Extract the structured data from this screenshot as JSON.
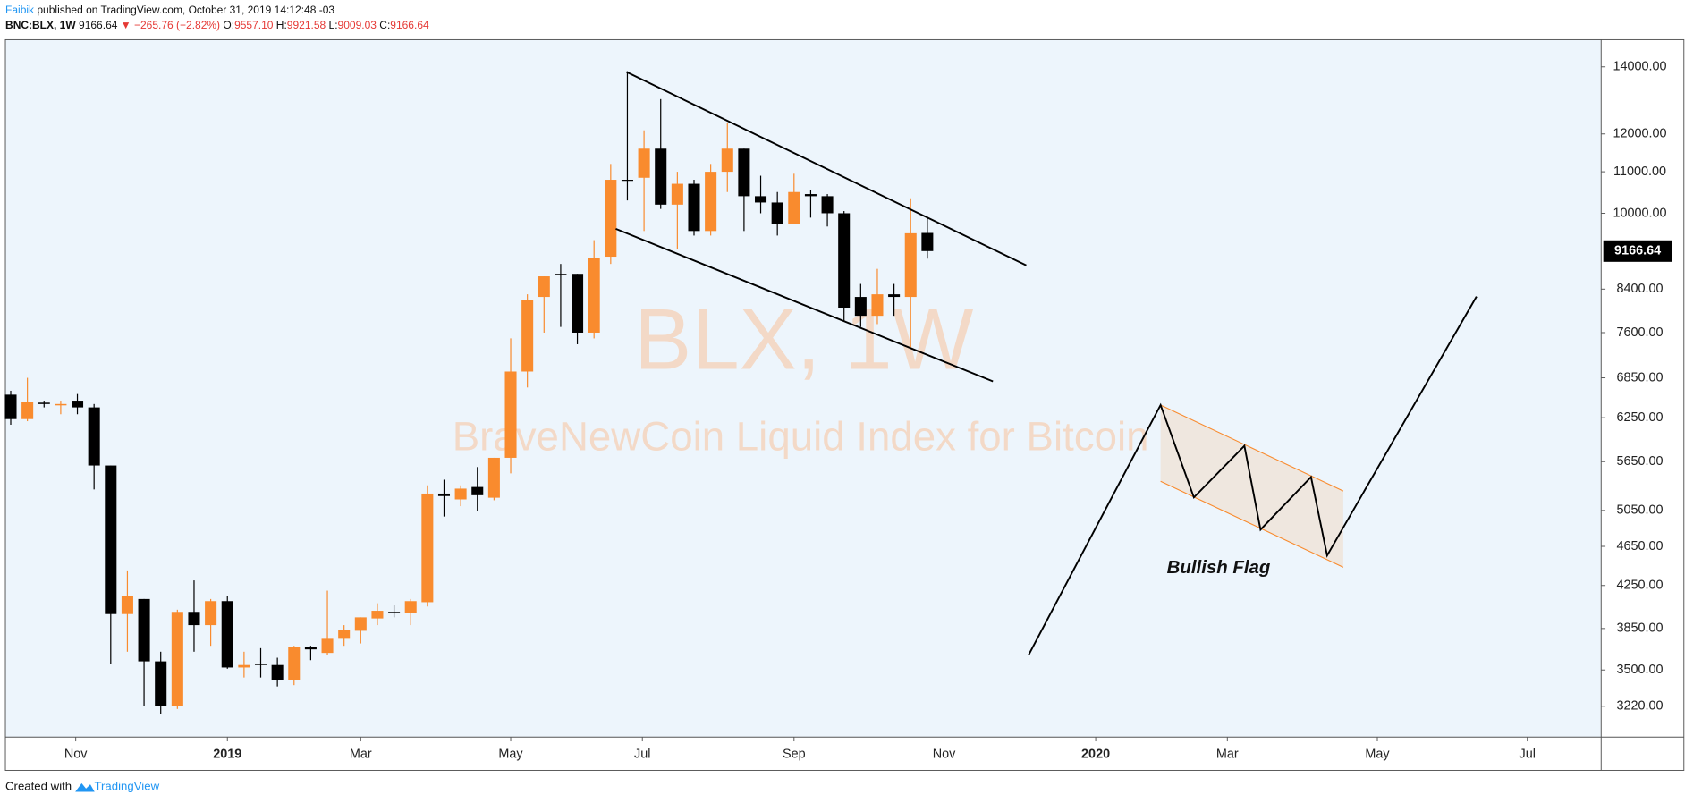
{
  "header": {
    "author": "Faibik",
    "published": "published on TradingView.com, October 31, 2019 14:12:48 -03",
    "symbol": "BNC:BLX, 1W",
    "last": "9166.64",
    "change": "▼ −265.76 (−2.82%)",
    "open_label": "O:",
    "open": "9557.10",
    "high_label": "H:",
    "high": "9921.58",
    "low_label": "L:",
    "low": "9009.03",
    "close_label": "C:",
    "close": "9166.64"
  },
  "footer": {
    "created": "Created with",
    "brand": "TradingView"
  },
  "chart_data": {
    "type": "candlestick",
    "watermark": "BLX, 1W",
    "watermark_subtitle": "BraveNewCoin Liquid Index for Bitcoin",
    "annotation": "Bullish Flag",
    "categories": [
      null,
      null,
      null,
      null,
      null,
      null,
      null,
      null,
      null,
      null,
      null,
      null,
      null,
      null,
      null,
      null,
      null,
      null,
      null,
      null,
      null,
      null,
      null,
      null,
      null,
      null,
      null,
      null,
      null,
      null,
      null,
      null,
      null,
      null,
      null,
      null,
      null,
      null,
      null,
      null,
      null,
      null,
      null,
      null,
      null,
      null,
      null,
      null,
      null,
      null,
      null,
      null,
      null,
      null,
      null,
      null
    ],
    "open": [
      6590,
      6230,
      6470,
      6430,
      6500,
      6400,
      5600,
      3980,
      4120,
      3570,
      3220,
      4000,
      3880,
      4100,
      3520,
      3550,
      3540,
      3420,
      3690,
      3640,
      3760,
      3830,
      3940,
      4000,
      3990,
      4090,
      5250,
      5180,
      5330,
      5200,
      5700,
      6950,
      8250,
      8700,
      8700,
      7600,
      9050,
      10800,
      10850,
      11600,
      10200,
      10700,
      9600,
      11000,
      11600,
      10400,
      10250,
      9750,
      10450,
      10400,
      10000,
      8250,
      7900,
      8300,
      8250,
      9557.1
    ],
    "high": [
      6650,
      6850,
      6500,
      6500,
      6600,
      6450,
      5600,
      4400,
      4120,
      3650,
      4020,
      4300,
      4120,
      4150,
      3650,
      3680,
      3600,
      3700,
      3700,
      4200,
      3880,
      3950,
      4080,
      4060,
      4120,
      5350,
      5420,
      5350,
      5580,
      5700,
      7500,
      8300,
      8650,
      8900,
      8700,
      9400,
      11200,
      13860,
      12100,
      13000,
      11000,
      10800,
      11200,
      12300,
      11600,
      10900,
      10500,
      10950,
      10550,
      10450,
      10050,
      8500,
      8800,
      8500,
      10350,
      9921.58
    ],
    "low": [
      6150,
      6200,
      6400,
      6300,
      6300,
      5300,
      3550,
      3650,
      3220,
      3160,
      3200,
      3650,
      3700,
      3510,
      3440,
      3440,
      3370,
      3380,
      3580,
      3620,
      3700,
      3720,
      3880,
      3950,
      3880,
      4050,
      4980,
      5100,
      5040,
      5170,
      5500,
      6700,
      7600,
      7700,
      7400,
      7500,
      8900,
      10300,
      9600,
      10100,
      9200,
      9500,
      9500,
      10500,
      9600,
      10000,
      9500,
      9750,
      9900,
      9700,
      7800,
      7700,
      7750,
      7900,
      7350,
      9009.03
    ],
    "close": [
      6230,
      6480,
      6450,
      6450,
      6400,
      5600,
      3980,
      4150,
      3570,
      3220,
      4000,
      3880,
      4100,
      3520,
      3540,
      3540,
      3420,
      3690,
      3670,
      3760,
      3840,
      3950,
      4010,
      3990,
      4100,
      5250,
      5220,
      5310,
      5230,
      5700,
      6950,
      8200,
      8650,
      8700,
      7600,
      9020,
      10800,
      10800,
      11600,
      10200,
      10700,
      9600,
      11000,
      11600,
      10400,
      10250,
      9750,
      10500,
      10400,
      10000,
      8050,
      7900,
      8300,
      8250,
      9550,
      9166.64
    ],
    "up_color": "#f98b2e",
    "down_color": "#000000",
    "last_price": 9166.64,
    "log_scale": true,
    "xlim": [
      -0.32,
      95.43
    ],
    "xticks": [
      {
        "value": 3.9,
        "label": "Nov"
      },
      {
        "value": 13.0,
        "label": "2019"
      },
      {
        "value": 21.0,
        "label": "Mar"
      },
      {
        "value": 30.0,
        "label": "May"
      },
      {
        "value": 37.9,
        "label": "Jul"
      },
      {
        "value": 47.0,
        "label": "Sep"
      },
      {
        "value": 56.0,
        "label": "Nov"
      },
      {
        "value": 65.1,
        "label": "2020"
      },
      {
        "value": 73.0,
        "label": "Mar"
      },
      {
        "value": 82.0,
        "label": "May"
      },
      {
        "value": 91.0,
        "label": "Jul"
      }
    ],
    "ylim": [
      3000,
      14900
    ],
    "yticks": [
      {
        "value": 3220,
        "label": "3220.00"
      },
      {
        "value": 3500,
        "label": "3500.00"
      },
      {
        "value": 3850,
        "label": "3850.00"
      },
      {
        "value": 4250,
        "label": "4250.00"
      },
      {
        "value": 4650,
        "label": "4650.00"
      },
      {
        "value": 5050,
        "label": "5050.00"
      },
      {
        "value": 5650,
        "label": "5650.00"
      },
      {
        "value": 6250,
        "label": "6250.00"
      },
      {
        "value": 6850,
        "label": "6850.00"
      },
      {
        "value": 7600,
        "label": "7600.00"
      },
      {
        "value": 8400,
        "label": "8400.00"
      },
      {
        "value": 10000,
        "label": "10000.00"
      },
      {
        "value": 11000,
        "label": "11000.00"
      },
      {
        "value": 12000,
        "label": "12000.00"
      },
      {
        "value": 14000,
        "label": "14000.00"
      }
    ]
  }
}
